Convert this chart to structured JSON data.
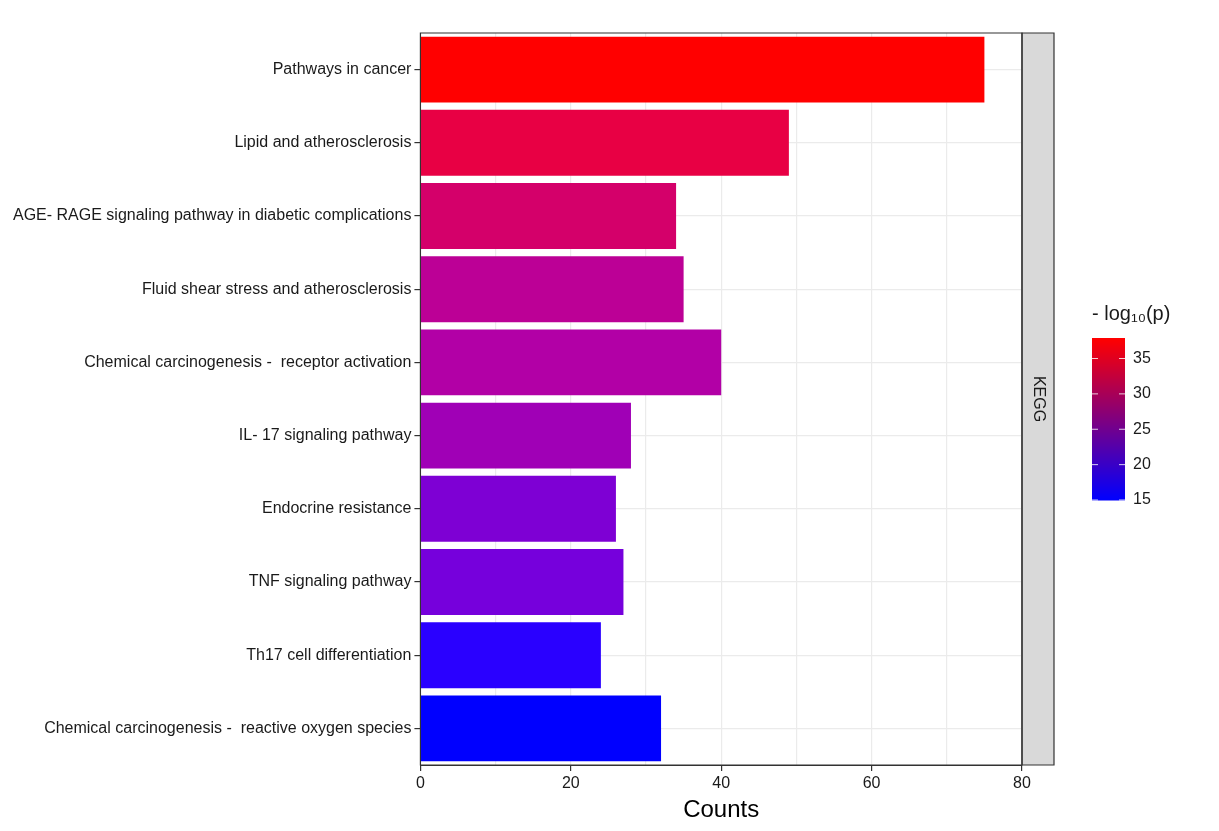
{
  "chart_data": {
    "type": "bar",
    "orientation": "horizontal",
    "categories": [
      "Pathways in cancer",
      "Lipid and atherosclerosis",
      "AGE- RAGE signaling pathway in diabetic complications",
      "Fluid shear stress and atherosclerosis",
      "Chemical carcinogenesis -  receptor activation",
      "IL- 17 signaling pathway",
      "Endocrine resistance",
      "TNF signaling pathway",
      "Th17 cell differentiation",
      "Chemical carcinogenesis -  reactive oxygen species"
    ],
    "values": [
      75,
      49,
      34,
      35,
      40,
      28,
      26,
      27,
      24,
      32
    ],
    "colors": [
      "#ff0000",
      "#e80044",
      "#d4006a",
      "#bc0096",
      "#b200a6",
      "#a000b6",
      "#7e00d4",
      "#7600dc",
      "#2a00ff",
      "#0000ff"
    ],
    "xlim": [
      0,
      80
    ],
    "xticks": [
      0,
      {
        "value": 10,
        "label": null
      },
      20,
      {
        "value": 30,
        "label": null
      },
      40,
      {
        "value": 50,
        "label": null
      },
      60,
      {
        "value": 70,
        "label": null
      },
      80
    ],
    "xlabel": "Counts",
    "clabel": "- log₁₀(p)",
    "clim": [
      15,
      37.9
    ],
    "cticks": [
      15,
      20,
      25,
      30,
      35
    ],
    "annotations": [
      "KEGG"
    ],
    "grid": true,
    "legend": false
  }
}
